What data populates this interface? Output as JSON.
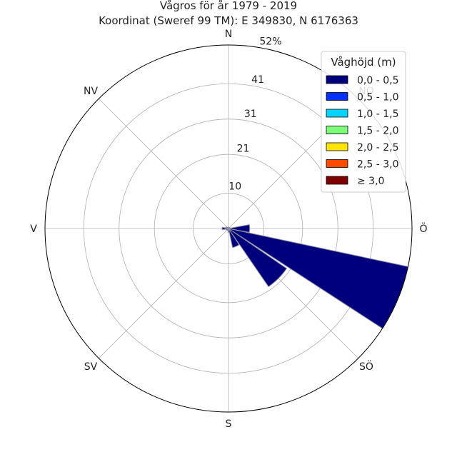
{
  "chart_data": {
    "type": "wind-rose",
    "title": "Vågros för år 1979 - 2019",
    "subtitle": "Koordinat (Sweref 99 TM): E 349830, N 6176363",
    "directions": [
      "N",
      "NO",
      "Ö",
      "SÖ",
      "S",
      "SV",
      "V",
      "NV"
    ],
    "radial_ticks": [
      "10",
      "21",
      "31",
      "41",
      "52%"
    ],
    "radial_tick_values": [
      10,
      21,
      31,
      41,
      52
    ],
    "rmax": 52,
    "grid": true,
    "legend": {
      "title": "Våghöjd (m)",
      "placement": "top-right",
      "entries": [
        {
          "label": "0,0 - 0,5",
          "color": "#00007f"
        },
        {
          "label": "0,5 - 1,0",
          "color": "#0030ff"
        },
        {
          "label": "1,0 - 1,5",
          "color": "#00d4ff"
        },
        {
          "label": "1,5 - 2,0",
          "color": "#7dff7a"
        },
        {
          "label": "2,0 - 2,5",
          "color": "#ffe500"
        },
        {
          "label": "2,5 - 3,0",
          "color": "#ff4a00"
        },
        {
          "label": "≥ 3,0",
          "color": "#7f0000"
        }
      ]
    },
    "sectors": [
      {
        "direction_deg": 0,
        "value": 0.4
      },
      {
        "direction_deg": 22.5,
        "value": 0.3
      },
      {
        "direction_deg": 45,
        "value": 0.3
      },
      {
        "direction_deg": 67.5,
        "value": 0.5
      },
      {
        "direction_deg": 90,
        "value": 6
      },
      {
        "direction_deg": 112.5,
        "value": 52
      },
      {
        "direction_deg": 135,
        "value": 20
      },
      {
        "direction_deg": 157.5,
        "value": 5.5
      },
      {
        "direction_deg": 180,
        "value": 1
      },
      {
        "direction_deg": 202.5,
        "value": 0.6
      },
      {
        "direction_deg": 225,
        "value": 0.5
      },
      {
        "direction_deg": 247.5,
        "value": 0.8
      },
      {
        "direction_deg": 270,
        "value": 1.8
      },
      {
        "direction_deg": 292.5,
        "value": 0.8
      },
      {
        "direction_deg": 315,
        "value": 0.4
      },
      {
        "direction_deg": 337.5,
        "value": 0.3
      }
    ],
    "bar_color": "#00007f",
    "bar_edge_color": "#8c8c9c"
  }
}
